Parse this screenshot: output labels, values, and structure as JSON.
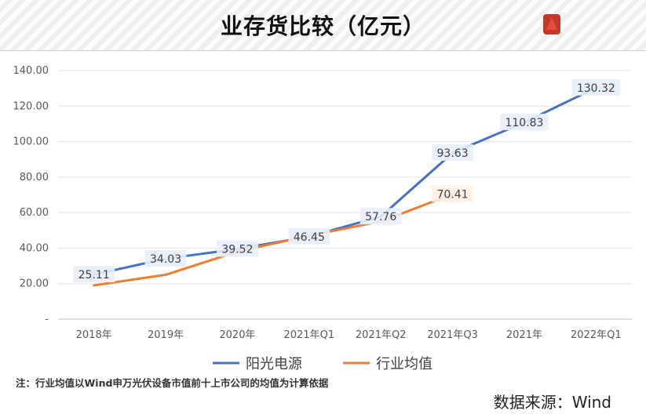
{
  "page": {
    "title": "业存货比较（亿元）",
    "footnote": "注：行业均值以Wind申万光伏设备市值前十上市公司的均值为计算依据",
    "source": "数据来源：Wind"
  },
  "chart_data": {
    "type": "line",
    "categories": [
      "2018年",
      "2019年",
      "2020年",
      "2021年Q1",
      "2021年Q2",
      "2021年Q3",
      "2021年",
      "2022年Q1"
    ],
    "ylim": [
      0,
      140
    ],
    "yticks": [
      0,
      20,
      40,
      60,
      80,
      100,
      120,
      140
    ],
    "ytick_labels": [
      "-",
      "20.00",
      "40.00",
      "60.00",
      "80.00",
      "100.00",
      "120.00",
      "140.00"
    ],
    "grid": true,
    "legend_position": "bottom",
    "series": [
      {
        "name": "阳光电源",
        "color": "#4472c4",
        "values": [
          25.11,
          34.03,
          39.52,
          46.45,
          57.76,
          93.63,
          110.83,
          130.32
        ],
        "labels": [
          "25.11",
          "34.03",
          "39.52",
          "46.45",
          "57.76",
          "93.63",
          "110.83",
          "130.32"
        ]
      },
      {
        "name": "行业均值",
        "color": "#ed7d31",
        "values": [
          19.0,
          25.0,
          38.0,
          47.0,
          55.0,
          70.41,
          null,
          null
        ],
        "labels": [
          null,
          null,
          null,
          null,
          null,
          "70.41",
          null,
          null
        ]
      }
    ]
  }
}
